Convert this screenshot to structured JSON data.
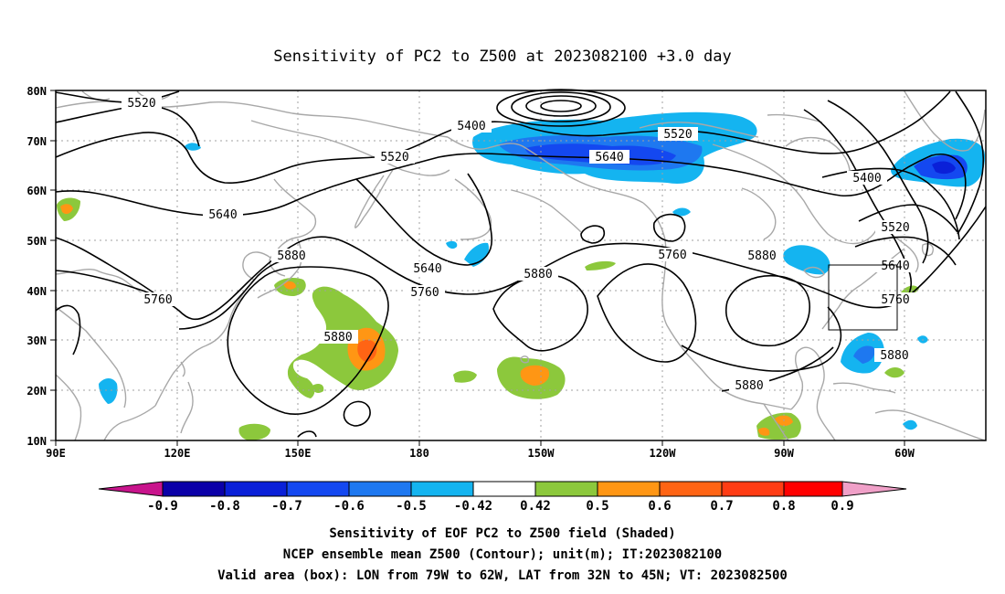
{
  "title": "Sensitivity of PC2 to Z500 at 2023082100 +3.0 day",
  "lat_labels": [
    "80N",
    "70N",
    "60N",
    "50N",
    "40N",
    "30N",
    "20N",
    "10N"
  ],
  "lon_labels": [
    "90E",
    "120E",
    "150E",
    "180",
    "150W",
    "120W",
    "90W",
    "60W"
  ],
  "contour_labels": {
    "l5520a": "5520",
    "l5400a": "5400",
    "l5520b": "5520",
    "l5520c": "5520",
    "l5640a": "5640",
    "l5640b": "5640",
    "l5400b": "5400",
    "l5520d": "5520",
    "l5880a": "5880",
    "l5760a": "5760",
    "l5640c": "5640",
    "l5760b": "5760",
    "l5880b": "5880",
    "l5760c": "5760",
    "l5880c": "5880",
    "l5640d": "5640",
    "l5760d": "5760",
    "l5880d": "5880",
    "l5880e": "5880",
    "l5880f": "5880"
  },
  "colorbar": {
    "labels": [
      "-0.9",
      "-0.8",
      "-0.7",
      "-0.6",
      "-0.5",
      "-0.42",
      "0.42",
      "0.5",
      "0.6",
      "0.7",
      "0.8",
      "0.9"
    ],
    "colors": [
      "#0b00a8",
      "#0a20d8",
      "#1448f0",
      "#1e78f0",
      "#14b4f0",
      "#ffffff",
      "#8cc83c",
      "#ff9614",
      "#ff6414",
      "#ff3c14",
      "#ff0000"
    ],
    "low_color": "#c8148c",
    "high_color": "#f0a0c8"
  },
  "footer": {
    "line1": "Sensitivity of EOF PC2 to Z500 field (Shaded)",
    "line2": "NCEP ensemble mean Z500 (Contour); unit(m); IT:2023082100",
    "line3": "Valid area (box): LON from 79W to 62W, LAT from 32N to 45N; VT: 2023082500"
  },
  "colors": {
    "coast": "#a8a8a8",
    "contour": "#000000",
    "grid": "#a0a0a0"
  }
}
